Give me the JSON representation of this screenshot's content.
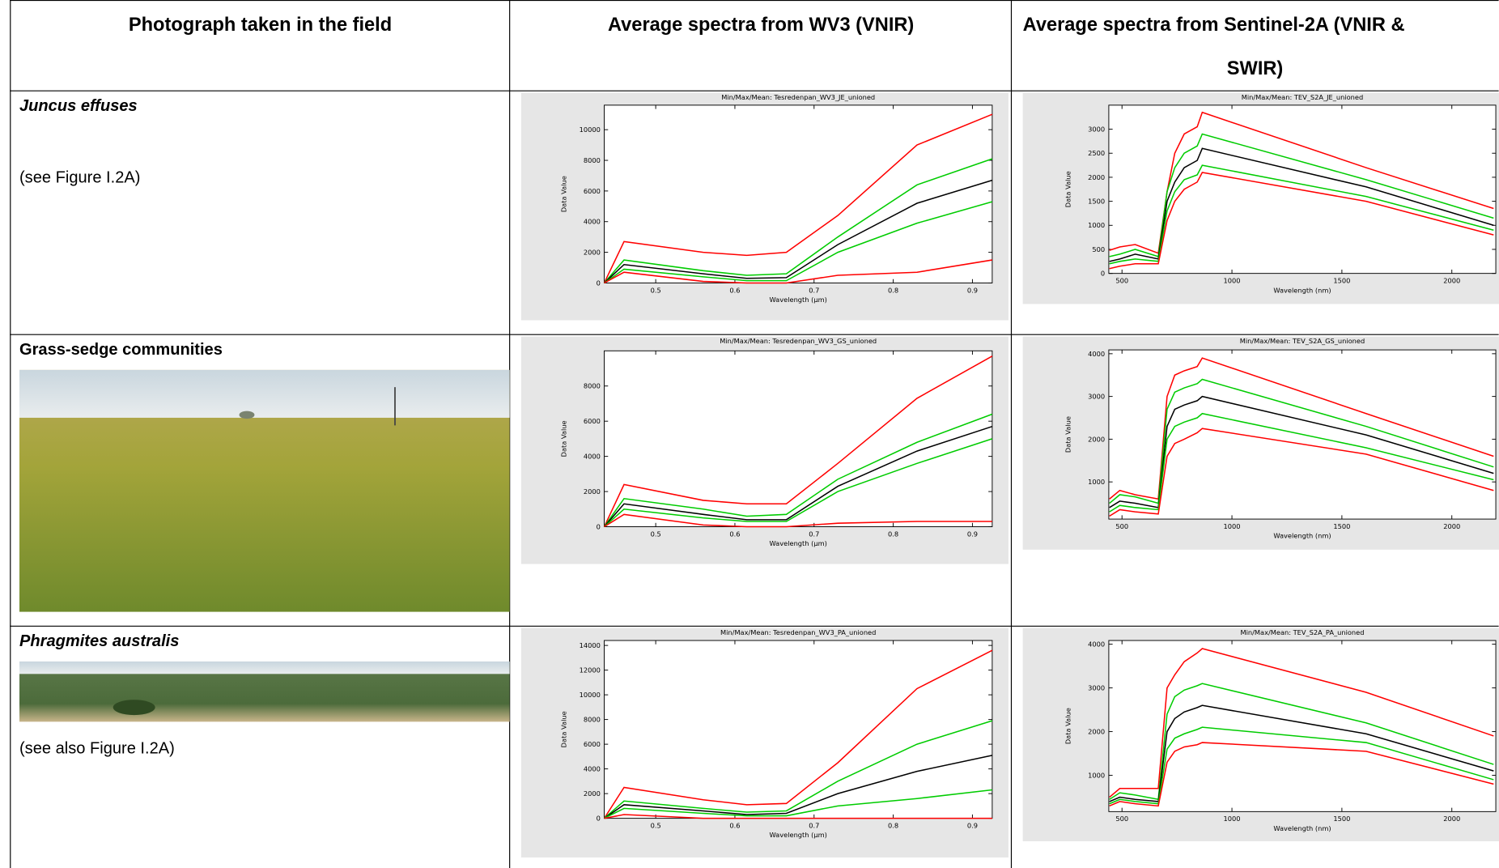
{
  "table": {
    "header": [
      "Photograph taken in the field",
      "Average spectra from WV3 (VNIR)",
      [
        "Average spectra from Sentinel-2A (VNIR &",
        "SWIR)"
      ]
    ],
    "rows": [
      {
        "label": "Juncus effuses",
        "note": "(see Figure I.2A)"
      },
      {
        "label": "Grass-sedge communities"
      },
      {
        "label": "Phragmites australis",
        "note": "(see also Figure I.2A)"
      }
    ]
  },
  "chart_data": [
    {
      "type": "line",
      "title": "Min/Max/Mean: Tesredenpan_WV3_JE_unioned",
      "x_label": "Wavelength (µm)",
      "y_label": "Data Value",
      "x": [
        0.435,
        0.46,
        0.56,
        0.615,
        0.665,
        0.73,
        0.83,
        0.925
      ],
      "xlim": [
        0.435,
        0.925
      ],
      "xticks": [
        0.5,
        0.6,
        0.7,
        0.8,
        0.9
      ],
      "ylim": [
        0,
        11600
      ],
      "yticks": [
        0,
        2000,
        4000,
        6000,
        8000,
        10000
      ],
      "series": [
        {
          "color": "#ff0000",
          "values": [
            0,
            2700,
            2000,
            1800,
            2000,
            4400,
            9000,
            11000
          ]
        },
        {
          "color": "#00cc00",
          "values": [
            0,
            1500,
            800,
            500,
            600,
            3000,
            6400,
            8100
          ]
        },
        {
          "color": "#000000",
          "values": [
            0,
            1200,
            600,
            300,
            350,
            2500,
            5200,
            6700
          ]
        },
        {
          "color": "#00cc00",
          "values": [
            0,
            900,
            400,
            150,
            150,
            2000,
            3900,
            5300
          ]
        },
        {
          "color": "#ff0000",
          "values": [
            0,
            700,
            100,
            0,
            0,
            500,
            700,
            1500
          ]
        }
      ]
    },
    {
      "type": "line",
      "title": "Min/Max/Mean: TEV_S2A_JE_unioned",
      "x_label": "Wavelength (nm)",
      "y_label": "Data Value",
      "x": [
        443,
        490,
        560,
        665,
        705,
        740,
        783,
        842,
        865,
        1610,
        2190
      ],
      "xlim": [
        440,
        2200
      ],
      "xticks": [
        500,
        1000,
        1500,
        2000
      ],
      "ylim": [
        0,
        3500
      ],
      "yticks": [
        0,
        500,
        1000,
        1500,
        2000,
        2500,
        3000
      ],
      "series": [
        {
          "color": "#ff0000",
          "values": [
            480,
            550,
            600,
            420,
            1700,
            2500,
            2900,
            3050,
            3350,
            2200,
            1350
          ]
        },
        {
          "color": "#00cc00",
          "values": [
            350,
            400,
            500,
            350,
            1700,
            2200,
            2500,
            2650,
            2900,
            1950,
            1150
          ]
        },
        {
          "color": "#000000",
          "values": [
            250,
            300,
            400,
            300,
            1500,
            1900,
            2200,
            2350,
            2600,
            1800,
            1000
          ]
        },
        {
          "color": "#00cc00",
          "values": [
            200,
            250,
            300,
            250,
            1300,
            1700,
            1950,
            2050,
            2250,
            1600,
            900
          ]
        },
        {
          "color": "#ff0000",
          "values": [
            100,
            150,
            200,
            200,
            1100,
            1500,
            1750,
            1900,
            2100,
            1500,
            800
          ]
        }
      ]
    },
    {
      "type": "line",
      "title": "Min/Max/Mean: Tesredenpan_WV3_GS_unioned",
      "x_label": "Wavelength (µm)",
      "y_label": "Data Value",
      "x": [
        0.435,
        0.46,
        0.56,
        0.615,
        0.665,
        0.73,
        0.83,
        0.925
      ],
      "xlim": [
        0.435,
        0.925
      ],
      "xticks": [
        0.5,
        0.6,
        0.7,
        0.8,
        0.9
      ],
      "ylim": [
        0,
        10000
      ],
      "yticks": [
        0,
        2000,
        4000,
        6000,
        8000
      ],
      "series": [
        {
          "color": "#ff0000",
          "values": [
            0,
            2400,
            1500,
            1300,
            1300,
            3600,
            7300,
            9700
          ]
        },
        {
          "color": "#00cc00",
          "values": [
            0,
            1600,
            1000,
            600,
            700,
            2700,
            4800,
            6400
          ]
        },
        {
          "color": "#000000",
          "values": [
            0,
            1300,
            700,
            400,
            400,
            2300,
            4300,
            5700
          ]
        },
        {
          "color": "#00cc00",
          "values": [
            0,
            1000,
            500,
            300,
            300,
            2000,
            3600,
            5000
          ]
        },
        {
          "color": "#ff0000",
          "values": [
            0,
            700,
            100,
            0,
            0,
            200,
            300,
            300
          ]
        }
      ]
    },
    {
      "type": "line",
      "title": "Min/Max/Mean: TEV_S2A_GS_unioned",
      "x_label": "Wavelength (nm)",
      "y_label": "Data Value",
      "x": [
        443,
        490,
        560,
        665,
        705,
        740,
        783,
        842,
        865,
        1610,
        2190
      ],
      "xlim": [
        440,
        2200
      ],
      "xticks": [
        500,
        1000,
        1500,
        2000
      ],
      "ylim": [
        130,
        4090
      ],
      "yticks": [
        1000,
        2000,
        3000,
        4000
      ],
      "series": [
        {
          "color": "#ff0000",
          "values": [
            600,
            800,
            700,
            600,
            3000,
            3500,
            3600,
            3700,
            3900,
            2600,
            1600
          ]
        },
        {
          "color": "#00cc00",
          "values": [
            500,
            700,
            650,
            500,
            2700,
            3100,
            3200,
            3300,
            3400,
            2300,
            1350
          ]
        },
        {
          "color": "#000000",
          "values": [
            400,
            550,
            500,
            400,
            2300,
            2700,
            2800,
            2900,
            3000,
            2100,
            1200
          ]
        },
        {
          "color": "#00cc00",
          "values": [
            300,
            450,
            400,
            350,
            2000,
            2300,
            2400,
            2500,
            2600,
            1800,
            1050
          ]
        },
        {
          "color": "#ff0000",
          "values": [
            200,
            350,
            300,
            250,
            1600,
            1900,
            2000,
            2150,
            2250,
            1650,
            800
          ]
        }
      ]
    },
    {
      "type": "line",
      "title": "Min/Max/Mean: Tesredenpan_WV3_PA_unioned",
      "x_label": "Wavelength (µm)",
      "y_label": "Data Value",
      "x": [
        0.435,
        0.46,
        0.56,
        0.615,
        0.665,
        0.73,
        0.83,
        0.925
      ],
      "xlim": [
        0.435,
        0.925
      ],
      "xticks": [
        0.5,
        0.6,
        0.7,
        0.8,
        0.9
      ],
      "ylim": [
        0,
        14400
      ],
      "yticks": [
        0,
        2000,
        4000,
        6000,
        8000,
        10000,
        12000,
        14000
      ],
      "series": [
        {
          "color": "#ff0000",
          "values": [
            0,
            2500,
            1500,
            1100,
            1200,
            4500,
            10500,
            13600
          ]
        },
        {
          "color": "#00cc00",
          "values": [
            0,
            1400,
            800,
            500,
            600,
            3000,
            6000,
            7900
          ]
        },
        {
          "color": "#000000",
          "values": [
            0,
            1100,
            600,
            300,
            400,
            2000,
            3800,
            5100
          ]
        },
        {
          "color": "#00cc00",
          "values": [
            0,
            800,
            400,
            200,
            200,
            1000,
            1600,
            2300
          ]
        },
        {
          "color": "#ff0000",
          "values": [
            0,
            300,
            0,
            0,
            0,
            0,
            0,
            0
          ]
        }
      ]
    },
    {
      "type": "line",
      "title": "Min/Max/Mean: TEV_S2A_PA_unioned",
      "x_label": "Wavelength (nm)",
      "y_label": "Data Value",
      "x": [
        443,
        490,
        560,
        665,
        705,
        740,
        783,
        842,
        865,
        1610,
        2190
      ],
      "xlim": [
        440,
        2200
      ],
      "xticks": [
        500,
        1000,
        1500,
        2000
      ],
      "ylim": [
        170,
        4085
      ],
      "yticks": [
        1000,
        2000,
        3000,
        4000
      ],
      "series": [
        {
          "color": "#ff0000",
          "values": [
            500,
            700,
            700,
            700,
            3000,
            3300,
            3600,
            3800,
            3900,
            2900,
            1900
          ]
        },
        {
          "color": "#00cc00",
          "values": [
            450,
            600,
            550,
            450,
            2400,
            2800,
            2950,
            3050,
            3100,
            2200,
            1250
          ]
        },
        {
          "color": "#000000",
          "values": [
            400,
            500,
            450,
            400,
            2000,
            2300,
            2450,
            2550,
            2600,
            1950,
            1100
          ]
        },
        {
          "color": "#00cc00",
          "values": [
            350,
            450,
            400,
            350,
            1600,
            1850,
            1950,
            2050,
            2100,
            1750,
            900
          ]
        },
        {
          "color": "#ff0000",
          "values": [
            300,
            400,
            350,
            300,
            1300,
            1550,
            1650,
            1700,
            1750,
            1550,
            800
          ]
        }
      ]
    }
  ]
}
